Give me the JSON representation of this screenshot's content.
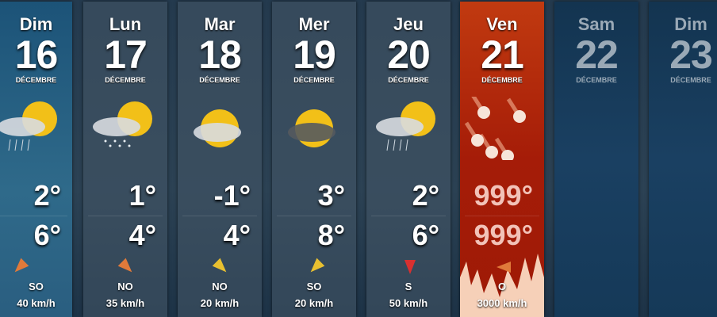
{
  "month": "DÉCEMBRE",
  "days": [
    {
      "name": "Dim",
      "num": "16",
      "icon": "cloud-sun-rain-icon",
      "low": "2°",
      "high": "6°",
      "wind_dir": "SO",
      "wind_speed": "40 km/h"
    },
    {
      "name": "Lun",
      "num": "17",
      "icon": "cloud-sun-snow-icon",
      "low": "1°",
      "high": "4°",
      "wind_dir": "NO",
      "wind_speed": "35 km/h"
    },
    {
      "name": "Mar",
      "num": "18",
      "icon": "sun-cloud-icon",
      "low": "-1°",
      "high": "4°",
      "wind_dir": "NO",
      "wind_speed": "20 km/h"
    },
    {
      "name": "Mer",
      "num": "19",
      "icon": "sun-dark-cloud-icon",
      "low": "3°",
      "high": "8°",
      "wind_dir": "SO",
      "wind_speed": "20 km/h"
    },
    {
      "name": "Jeu",
      "num": "20",
      "icon": "cloud-sun-rain-icon",
      "low": "2°",
      "high": "6°",
      "wind_dir": "S",
      "wind_speed": "50 km/h"
    },
    {
      "name": "Ven",
      "num": "21",
      "icon": "meteor-icon",
      "low": "999°",
      "high": "999°",
      "wind_dir": "O",
      "wind_speed": "3000 km/h"
    },
    {
      "name": "Sam",
      "num": "22"
    },
    {
      "name": "Dim",
      "num": "23"
    }
  ],
  "colors": {
    "fire": "#a51c08",
    "arrow_orange": "#e07a3a",
    "arrow_yellow": "#e8c030",
    "arrow_red": "#d83030"
  }
}
